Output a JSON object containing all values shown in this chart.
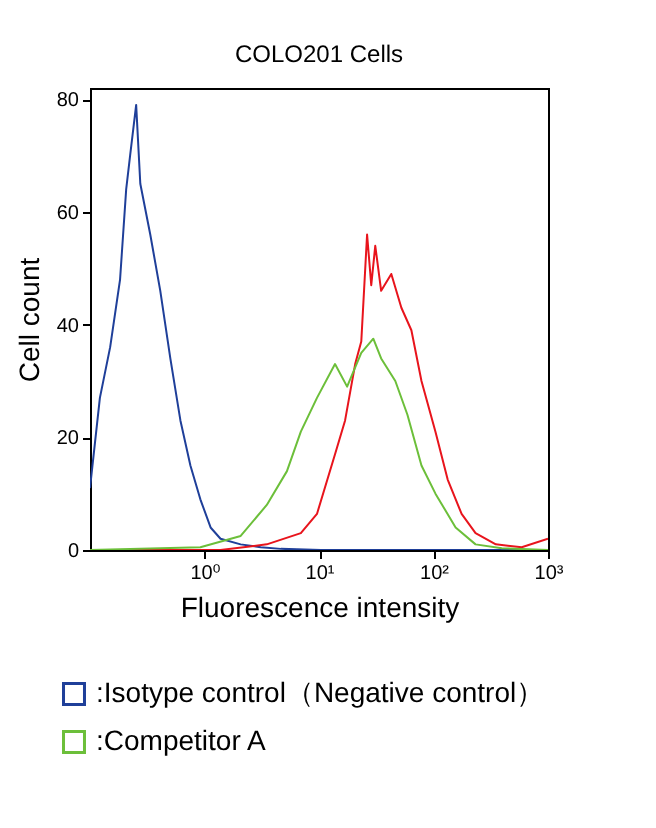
{
  "chart_data": {
    "type": "line",
    "title": "COLO201 Cells",
    "xlabel": "Fluorescence intensity",
    "ylabel": "Cell count",
    "log": "x",
    "xlim": [
      0.1,
      1000
    ],
    "xticks": [
      {
        "value": 1,
        "label": "10⁰"
      },
      {
        "value": 10,
        "label": "10¹"
      },
      {
        "value": 100,
        "label": "10²"
      },
      {
        "value": 1000,
        "label": "10³"
      }
    ],
    "ylim": [
      0,
      82
    ],
    "yticks": [
      0,
      20,
      40,
      60,
      80
    ],
    "grid": false,
    "legend": "bottom",
    "marker": "none",
    "line_style": "solid",
    "series": [
      {
        "name": ":Isotype control（Negative control）",
        "color": "#1f3f99",
        "x": [
          0.1,
          0.122,
          0.15,
          0.183,
          0.207,
          0.224,
          0.253,
          0.275,
          0.336,
          0.411,
          0.503,
          0.616,
          0.753,
          0.92,
          1.13,
          1.38,
          2.07,
          3.1,
          4.64,
          10.4,
          52,
          1000
        ],
        "values": [
          11,
          27,
          36,
          48,
          64,
          70,
          79,
          65,
          56,
          46,
          34,
          23,
          15,
          9,
          4,
          2,
          1,
          0.5,
          0.2,
          0,
          0,
          0
        ]
      },
      {
        "color": "#e8141c",
        "x": [
          0.1,
          1.38,
          3.5,
          6.94,
          9.6,
          13.8,
          16.9,
          20.7,
          23.4,
          26.3,
          28.6,
          31.0,
          34.9,
          42.8,
          52.4,
          64.1,
          78.5,
          104,
          133,
          176,
          233,
          350,
          589,
          1000
        ],
        "values": [
          0,
          0,
          1,
          3,
          6.4,
          17,
          23,
          33,
          37,
          56,
          47,
          54,
          46,
          49,
          43,
          39,
          30,
          21,
          12.5,
          6.4,
          3,
          1,
          0.5,
          2
        ]
      },
      {
        "name": ":Competitor A",
        "color": "#6cbf3a",
        "x": [
          0.1,
          0.92,
          2.07,
          3.5,
          5.25,
          6.94,
          9.6,
          13.8,
          17.6,
          23.4,
          29.8,
          34.9,
          46.4,
          59.2,
          78.5,
          104,
          156,
          233,
          395,
          1000
        ],
        "values": [
          0,
          0.5,
          2.5,
          8,
          14,
          21,
          27,
          33,
          29,
          35,
          37.5,
          34,
          30,
          24,
          15,
          10,
          4,
          1,
          0.3,
          0
        ]
      }
    ]
  }
}
